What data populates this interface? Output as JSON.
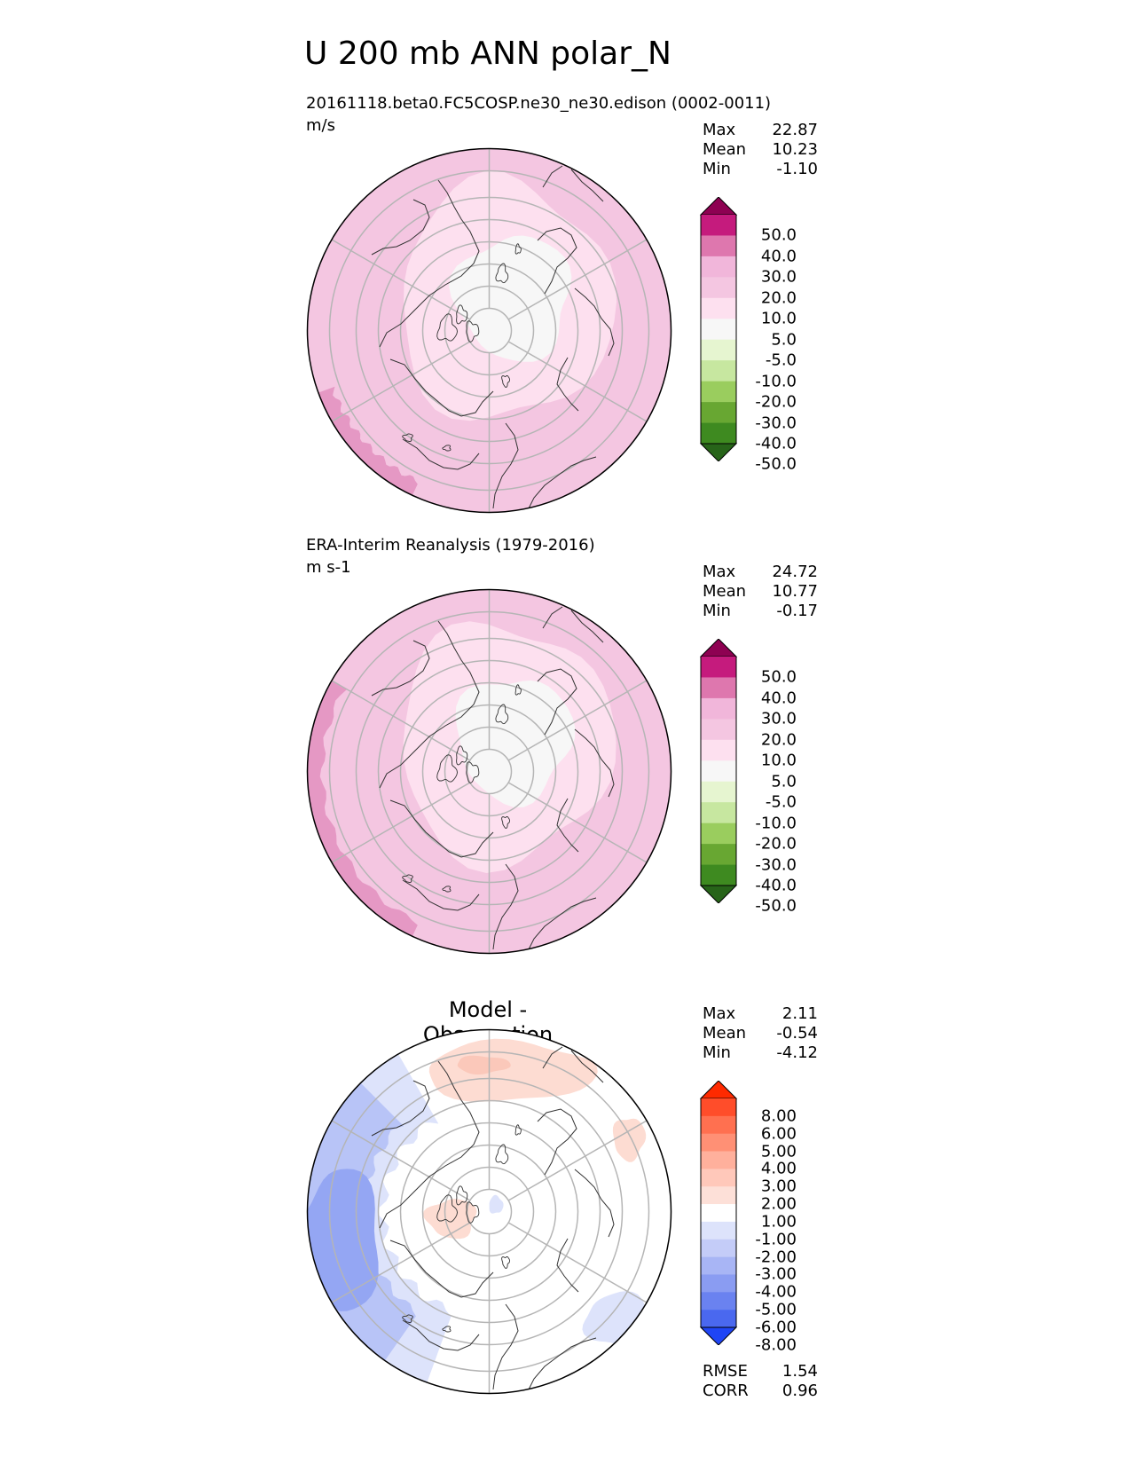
{
  "figure": {
    "title": "U 200 mb ANN polar_N"
  },
  "panels": [
    {
      "id": "test",
      "title": "20161118.beta0.FC5COSP.ne30_ne30.edison (0002-0011)",
      "units": "m/s",
      "stats": {
        "max_label": "Max",
        "max": "22.87",
        "mean_label": "Mean",
        "mean": "10.23",
        "min_label": "Min",
        "min": "-1.10"
      },
      "colorbar": {
        "labels": [
          "50.0",
          "40.0",
          "30.0",
          "20.0",
          "10.0",
          "5.0",
          "-5.0",
          "-10.0",
          "-20.0",
          "-30.0",
          "-40.0",
          "-50.0"
        ],
        "colors": [
          "#8e0152",
          "#c51b7d",
          "#de77ae",
          "#f1b6da",
          "#f4c6e1",
          "#fde0ef",
          "#f7f7f7",
          "#e6f5d0",
          "#c7e7a0",
          "#9acd5e",
          "#68a732",
          "#3e8a20",
          "#276419"
        ]
      }
    },
    {
      "id": "ref",
      "title": "ERA-Interim Reanalysis (1979-2016)",
      "units": "m s-1",
      "stats": {
        "max_label": "Max",
        "max": "24.72",
        "mean_label": "Mean",
        "mean": "10.77",
        "min_label": "Min",
        "min": "-0.17"
      },
      "colorbar": {
        "labels": [
          "50.0",
          "40.0",
          "30.0",
          "20.0",
          "10.0",
          "5.0",
          "-5.0",
          "-10.0",
          "-20.0",
          "-30.0",
          "-40.0",
          "-50.0"
        ],
        "colors": [
          "#8e0152",
          "#c51b7d",
          "#de77ae",
          "#f1b6da",
          "#f4c6e1",
          "#fde0ef",
          "#f7f7f7",
          "#e6f5d0",
          "#c7e7a0",
          "#9acd5e",
          "#68a732",
          "#3e8a20",
          "#276419"
        ]
      }
    },
    {
      "id": "diff",
      "title": "Model - Observation",
      "stats": {
        "max_label": "Max",
        "max": "2.11",
        "mean_label": "Mean",
        "mean": "-0.54",
        "min_label": "Min",
        "min": "-4.12"
      },
      "extra": {
        "rmse_label": "RMSE",
        "rmse": "1.54",
        "corr_label": "CORR",
        "corr": "0.96"
      },
      "colorbar": {
        "labels": [
          "8.00",
          "6.00",
          "5.00",
          "4.00",
          "3.00",
          "2.00",
          "1.00",
          "-1.00",
          "-2.00",
          "-3.00",
          "-4.00",
          "-5.00",
          "-6.00",
          "-8.00"
        ],
        "colors": [
          "#ff2a00",
          "#ff4d2a",
          "#ff7050",
          "#ff9075",
          "#ffb09c",
          "#ffc8ba",
          "#fde0d8",
          "#ffffff",
          "#dde3fb",
          "#c4ccf8",
          "#a8b5f5",
          "#8a9cf2",
          "#6a82f0",
          "#4a68ef",
          "#1f45f5"
        ]
      }
    }
  ],
  "colors": {
    "test_bg": "#f4c6e1",
    "test_light": "#fde0ef",
    "test_center": "#f7f7f7",
    "test_dark": "#e598c4",
    "diff_pos": "#fddcd2",
    "diff_pos2": "#fbc8ba",
    "diff_neg1": "#dde3fb",
    "diff_neg2": "#b8c4f7",
    "diff_neg3": "#94a6f3",
    "grid": "#b5b5b5",
    "coast": "#333333"
  }
}
